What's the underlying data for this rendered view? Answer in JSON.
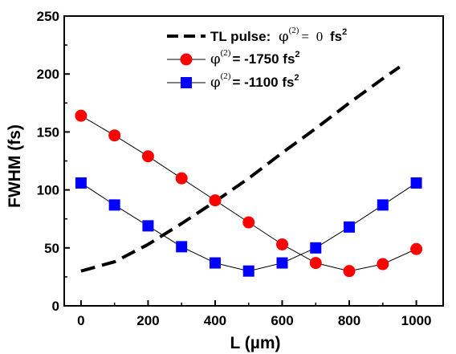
{
  "chart_data": {
    "type": "line",
    "xlabel": "L  (µm)",
    "ylabel": "FWHM (fs)",
    "xlim": [
      -50,
      1080
    ],
    "ylim": [
      0,
      250
    ],
    "xticks": [
      0,
      200,
      400,
      600,
      800,
      1000
    ],
    "yticks": [
      0,
      50,
      100,
      150,
      200,
      250
    ],
    "grid": false,
    "legend_position": "top-center",
    "series": [
      {
        "name": "TL pulse:  φ(2) = 0 fs2",
        "style": "dashed",
        "color": "#000000",
        "marker": "none",
        "x": [
          0,
          100,
          200,
          300,
          400,
          500,
          600,
          700,
          800,
          900,
          950
        ],
        "y": [
          30,
          38,
          53,
          71,
          90,
          110,
          132,
          153,
          175,
          196,
          206
        ]
      },
      {
        "name": "φ(2) = -1750 fs2",
        "style": "solid",
        "color": "#ff0000",
        "marker": "circle",
        "x": [
          0,
          100,
          200,
          300,
          400,
          500,
          600,
          700,
          800,
          900,
          1000
        ],
        "y": [
          164,
          147,
          129,
          110,
          91,
          72,
          53,
          37,
          30,
          36,
          49
        ]
      },
      {
        "name": "φ(2) = -1100 fs2",
        "style": "solid",
        "color": "#0000ff",
        "marker": "square",
        "x": [
          0,
          100,
          200,
          300,
          400,
          500,
          600,
          700,
          800,
          900,
          1000
        ],
        "y": [
          106,
          87,
          69,
          51,
          37,
          30,
          37,
          50,
          68,
          87,
          106
        ]
      }
    ]
  },
  "legend": {
    "tl_label": "TL pulse:",
    "phi": "φ",
    "phi_sup": "(2)",
    "tl_eq": "=",
    "tl_value": "0",
    "unit_fs": "fs",
    "unit_sup": "2",
    "red_value": "= -1750 fs",
    "blue_value": "= -1100 fs"
  }
}
